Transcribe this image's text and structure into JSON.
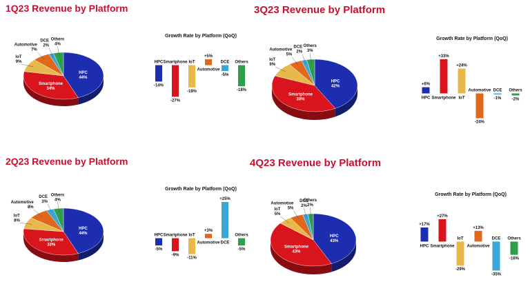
{
  "colors": {
    "title": "#c8102e",
    "HPC": "#1c2db0",
    "Smartphone": "#d9141c",
    "IoT": "#e8b84a",
    "Automotive": "#e0681c",
    "DCE": "#3aa7d8",
    "Others": "#2f9e4a"
  },
  "chart_data": [
    {
      "id": "1q23",
      "type": "pie",
      "title": "1Q23 Revenue by Platform",
      "slices": [
        {
          "name": "HPC",
          "value": 44,
          "label": "44%"
        },
        {
          "name": "Smartphone",
          "value": 34,
          "label": "34%"
        },
        {
          "name": "IoT",
          "value": 9,
          "label": "9%"
        },
        {
          "name": "Automotive",
          "value": 7,
          "label": "7%"
        },
        {
          "name": "DCE",
          "value": 2,
          "label": "2%"
        },
        {
          "name": "Others",
          "value": 4,
          "label": "4%"
        }
      ],
      "growth": {
        "type": "bar",
        "title": "Growth Rate by Platform (QoQ)",
        "categories": [
          "HPC",
          "Smartphone",
          "IoT",
          "Automotive",
          "DCE",
          "Others"
        ],
        "values": [
          -14,
          -27,
          -19,
          5,
          -5,
          -18
        ],
        "labels": [
          "-14%",
          "-27%",
          "-19%",
          "+5%",
          "-5%",
          "-18%"
        ]
      }
    },
    {
      "id": "3q23",
      "type": "pie",
      "title": "3Q23 Revenue by Platform",
      "slices": [
        {
          "name": "HPC",
          "value": 42,
          "label": "42%"
        },
        {
          "name": "Smartphone",
          "value": 39,
          "label": "39%"
        },
        {
          "name": "IoT",
          "value": 9,
          "label": "9%"
        },
        {
          "name": "Automotive",
          "value": 5,
          "label": "5%"
        },
        {
          "name": "DCE",
          "value": 2,
          "label": "2%"
        },
        {
          "name": "Others",
          "value": 3,
          "label": "3%"
        }
      ],
      "growth": {
        "type": "bar",
        "title": "Growth Rate by Platform (QoQ)",
        "categories": [
          "HPC",
          "Smartphone",
          "IoT",
          "Automotive",
          "DCE",
          "Others"
        ],
        "values": [
          6,
          33,
          24,
          -24,
          -1,
          -2
        ],
        "labels": [
          "+6%",
          "+33%",
          "+24%",
          "-24%",
          "-1%",
          "-2%"
        ]
      }
    },
    {
      "id": "2q23",
      "type": "pie",
      "title": "2Q23 Revenue by Platform",
      "slices": [
        {
          "name": "HPC",
          "value": 44,
          "label": "44%"
        },
        {
          "name": "Smartphone",
          "value": 33,
          "label": "33%"
        },
        {
          "name": "IoT",
          "value": 8,
          "label": "8%"
        },
        {
          "name": "Automotive",
          "value": 8,
          "label": "8%"
        },
        {
          "name": "DCE",
          "value": 3,
          "label": "3%"
        },
        {
          "name": "Others",
          "value": 4,
          "label": "4%"
        }
      ],
      "growth": {
        "type": "bar",
        "title": "Growth Rate by Platform (QoQ)",
        "categories": [
          "HPC",
          "Smartphone",
          "IoT",
          "Automotive",
          "DCE",
          "Others"
        ],
        "values": [
          -5,
          -9,
          -11,
          3,
          25,
          -5
        ],
        "labels": [
          "-5%",
          "-9%",
          "-11%",
          "+3%",
          "+25%",
          "-5%"
        ]
      }
    },
    {
      "id": "4q23",
      "type": "pie",
      "title": "4Q23 Revenue by Platform",
      "slices": [
        {
          "name": "HPC",
          "value": 43,
          "label": "43%"
        },
        {
          "name": "Smartphone",
          "value": 43,
          "label": "43%"
        },
        {
          "name": "IoT",
          "value": 5,
          "label": "5%"
        },
        {
          "name": "Automotive",
          "value": 5,
          "label": "5%"
        },
        {
          "name": "DCE",
          "value": 2,
          "label": "2%"
        },
        {
          "name": "Others",
          "value": 2,
          "label": "2%"
        }
      ],
      "growth": {
        "type": "bar",
        "title": "Growth Rate by Platform (QoQ)",
        "categories": [
          "HPC",
          "Smartphone",
          "IoT",
          "Automotive",
          "DCE",
          "Others"
        ],
        "values": [
          17,
          27,
          -29,
          13,
          -35,
          -16
        ],
        "labels": [
          "+17%",
          "+27%",
          "-29%",
          "+13%",
          "-35%",
          "-16%"
        ]
      }
    }
  ]
}
